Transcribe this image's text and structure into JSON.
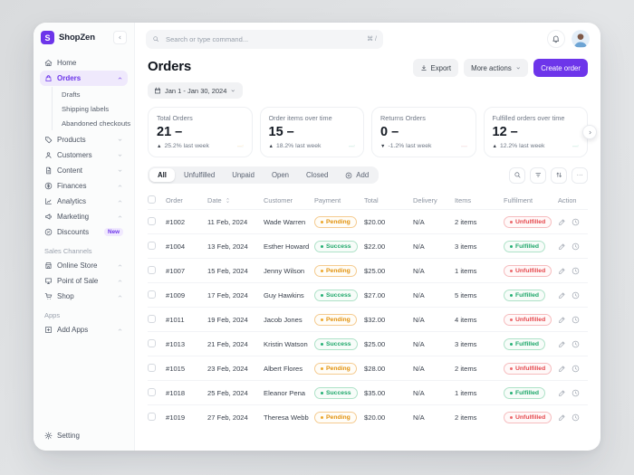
{
  "app": {
    "brand": "ShopZen",
    "logo_letter": "S"
  },
  "colors": {
    "accent": "#6d35ea",
    "pending": "#e2920e",
    "success": "#1ea76a",
    "danger": "#e5484d"
  },
  "sidebar": {
    "nav": [
      {
        "label": "Home",
        "icon": "home"
      },
      {
        "label": "Orders",
        "icon": "bag",
        "active": true,
        "chevron": "up",
        "children": [
          "Drafts",
          "Shipping labels",
          "Abandoned checkouts"
        ]
      },
      {
        "label": "Products",
        "icon": "tag",
        "chevron": "down"
      },
      {
        "label": "Customers",
        "icon": "user",
        "chevron": "down"
      },
      {
        "label": "Content",
        "icon": "file",
        "chevron": "down"
      },
      {
        "label": "Finances",
        "icon": "coins",
        "chevron": "up"
      },
      {
        "label": "Analytics",
        "icon": "chart",
        "chevron": "up"
      },
      {
        "label": "Marketing",
        "icon": "megaphone",
        "chevron": "up"
      },
      {
        "label": "Discounts",
        "icon": "discount",
        "badge": "New"
      }
    ],
    "sections": [
      {
        "title": "Sales Channels",
        "items": [
          {
            "label": "Online Store",
            "icon": "store",
            "chevron": "up"
          },
          {
            "label": "Point of Sale",
            "icon": "pos",
            "chevron": "up"
          },
          {
            "label": "Shop",
            "icon": "cart",
            "chevron": "up"
          }
        ]
      },
      {
        "title": "Apps",
        "items": [
          {
            "label": "Add Apps",
            "icon": "plus-square",
            "chevron": "up"
          }
        ]
      }
    ],
    "footer": {
      "label": "Setting",
      "icon": "gear"
    }
  },
  "topbar": {
    "search_placeholder": "Search or type command...",
    "shortcut": "⌘ /"
  },
  "page": {
    "title": "Orders",
    "date_range": "Jan 1 - Jan 30, 2024",
    "export_label": "Export",
    "more_actions_label": "More actions",
    "create_order_label": "Create order"
  },
  "stats": {
    "cards": [
      {
        "title": "Total Orders",
        "value": "21",
        "dash": "–",
        "trend": "up",
        "change": "25.2% last week",
        "color": "#f2b33d",
        "spark": [
          3,
          3.6,
          3.2,
          4,
          3.8,
          4.6,
          4.2,
          5,
          5.6,
          5.2,
          6.2,
          5.8,
          7,
          6.6,
          7.6,
          8.2
        ]
      },
      {
        "title": "Order items over time",
        "value": "15",
        "dash": "–",
        "trend": "up",
        "change": "18.2% last week",
        "color": "#3ec28f",
        "spark": [
          2.6,
          3.2,
          3,
          3.8,
          3.4,
          4.2,
          4,
          4.8,
          4.4,
          5.4,
          5,
          6,
          5.6,
          6.8,
          7.4,
          8
        ]
      },
      {
        "title": "Returns Orders",
        "value": "0",
        "dash": "–",
        "trend": "down",
        "change": "-1.2% last week",
        "color": "#f07f7f",
        "spark": [
          4.6,
          4.4,
          4.1,
          4.3,
          3.9,
          3.7,
          3.8,
          3.5,
          3.3,
          3.4,
          3.1,
          2.9,
          3,
          2.7,
          2.5,
          2.4
        ]
      },
      {
        "title": "Fulfilled orders over time",
        "value": "12",
        "dash": "–",
        "trend": "up",
        "change": "12.2% last week",
        "color": "#3ec28f",
        "spark": [
          2.4,
          3,
          2.8,
          3.6,
          3.2,
          4,
          3.8,
          4.6,
          5.2,
          4.8,
          5.8,
          5.4,
          6.4,
          6,
          7,
          7.8
        ]
      }
    ]
  },
  "tabs": {
    "items": [
      "All",
      "Unfulfilled",
      "Unpaid",
      "Open",
      "Closed"
    ],
    "active": "All",
    "add_label": "Add"
  },
  "table": {
    "headers": [
      "Order",
      "Date",
      "Customer",
      "Payment",
      "Total",
      "Delivery",
      "Items",
      "Fulfilment",
      "Action"
    ],
    "rows": [
      {
        "id": "#1002",
        "date": "11 Feb, 2024",
        "customer": "Wade Warren",
        "payment": "Pending",
        "total": "$20.00",
        "delivery": "N/A",
        "items": "2 items",
        "fulfilment": "Unfulfilled"
      },
      {
        "id": "#1004",
        "date": "13 Feb, 2024",
        "customer": "Esther Howard",
        "payment": "Success",
        "total": "$22.00",
        "delivery": "N/A",
        "items": "3 items",
        "fulfilment": "Fulfilled"
      },
      {
        "id": "#1007",
        "date": "15 Feb, 2024",
        "customer": "Jenny Wilson",
        "payment": "Pending",
        "total": "$25.00",
        "delivery": "N/A",
        "items": "1 items",
        "fulfilment": "Unfulfilled"
      },
      {
        "id": "#1009",
        "date": "17 Feb, 2024",
        "customer": "Guy Hawkins",
        "payment": "Success",
        "total": "$27.00",
        "delivery": "N/A",
        "items": "5 items",
        "fulfilment": "Fulfilled"
      },
      {
        "id": "#1011",
        "date": "19 Feb, 2024",
        "customer": "Jacob Jones",
        "payment": "Pending",
        "total": "$32.00",
        "delivery": "N/A",
        "items": "4 items",
        "fulfilment": "Unfulfilled"
      },
      {
        "id": "#1013",
        "date": "21 Feb, 2024",
        "customer": "Kristin Watson",
        "payment": "Success",
        "total": "$25.00",
        "delivery": "N/A",
        "items": "3 items",
        "fulfilment": "Fulfilled"
      },
      {
        "id": "#1015",
        "date": "23 Feb, 2024",
        "customer": "Albert Flores",
        "payment": "Pending",
        "total": "$28.00",
        "delivery": "N/A",
        "items": "2 items",
        "fulfilment": "Unfulfilled"
      },
      {
        "id": "#1018",
        "date": "25 Feb, 2024",
        "customer": "Eleanor Pena",
        "payment": "Success",
        "total": "$35.00",
        "delivery": "N/A",
        "items": "1 items",
        "fulfilment": "Fulfilled"
      },
      {
        "id": "#1019",
        "date": "27 Feb, 2024",
        "customer": "Theresa Webb",
        "payment": "Pending",
        "total": "$20.00",
        "delivery": "N/A",
        "items": "2 items",
        "fulfilment": "Unfulfilled"
      }
    ]
  }
}
